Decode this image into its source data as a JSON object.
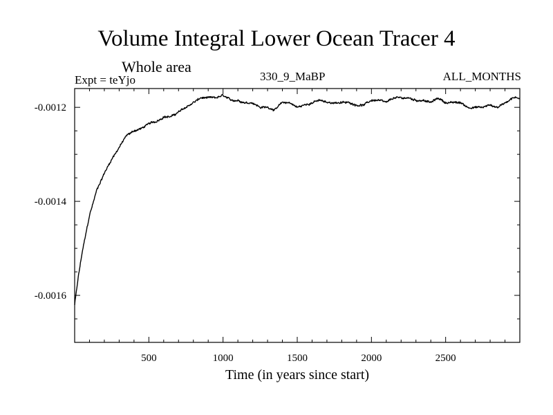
{
  "chart_data": {
    "type": "line",
    "title": "Volume Integral Lower Ocean Tracer 4",
    "subtitle": "Whole area",
    "experiment_label": "Expt = teYjo",
    "run_label": "330_9_MaBP",
    "period_label": "ALL_MONTHS",
    "xlabel": "Time (in years since start)",
    "ylabel": "",
    "xlim": [
      0,
      3000
    ],
    "ylim": [
      -0.0017,
      -0.00116
    ],
    "xticks": [
      500,
      1000,
      1500,
      2000,
      2500
    ],
    "xtick_labels": [
      "500",
      "1000",
      "1500",
      "2000",
      "2500"
    ],
    "yticks": [
      -0.0012,
      -0.0014,
      -0.0016
    ],
    "ytick_labels": [
      "-0.0012",
      "-0.0014",
      "-0.0016"
    ],
    "grid": false,
    "series": [
      {
        "name": "Volume Integral Lower Ocean Tracer 4",
        "color": "#000000",
        "x": [
          0,
          25,
          50,
          100,
          150,
          200,
          250,
          300,
          350,
          400,
          450,
          500,
          550,
          600,
          650,
          700,
          750,
          800,
          850,
          900,
          950,
          1000,
          1050,
          1100,
          1150,
          1200,
          1250,
          1300,
          1350,
          1400,
          1450,
          1500,
          1550,
          1600,
          1650,
          1700,
          1750,
          1800,
          1850,
          1900,
          1950,
          2000,
          2050,
          2100,
          2150,
          2200,
          2250,
          2300,
          2350,
          2400,
          2450,
          2500,
          2550,
          2600,
          2650,
          2700,
          2750,
          2800,
          2850,
          2900,
          2950,
          3000
        ],
        "y": [
          -0.00162,
          -0.00156,
          -0.00151,
          -0.00143,
          -0.001375,
          -0.00134,
          -0.00131,
          -0.001285,
          -0.00126,
          -0.00125,
          -0.001245,
          -0.001235,
          -0.00123,
          -0.00122,
          -0.00122,
          -0.00121,
          -0.0012,
          -0.00119,
          -0.00118,
          -0.00118,
          -0.00118,
          -0.001175,
          -0.001185,
          -0.001185,
          -0.00119,
          -0.00119,
          -0.0012,
          -0.0012,
          -0.001205,
          -0.00119,
          -0.00119,
          -0.0012,
          -0.001195,
          -0.00119,
          -0.001185,
          -0.00119,
          -0.00119,
          -0.00119,
          -0.00119,
          -0.001195,
          -0.001195,
          -0.001185,
          -0.001185,
          -0.00119,
          -0.00118,
          -0.00118,
          -0.00118,
          -0.001185,
          -0.001185,
          -0.00119,
          -0.00118,
          -0.00119,
          -0.00119,
          -0.00119,
          -0.0012,
          -0.0012,
          -0.0012,
          -0.001195,
          -0.0012,
          -0.00119,
          -0.00118,
          -0.00118
        ]
      }
    ]
  }
}
